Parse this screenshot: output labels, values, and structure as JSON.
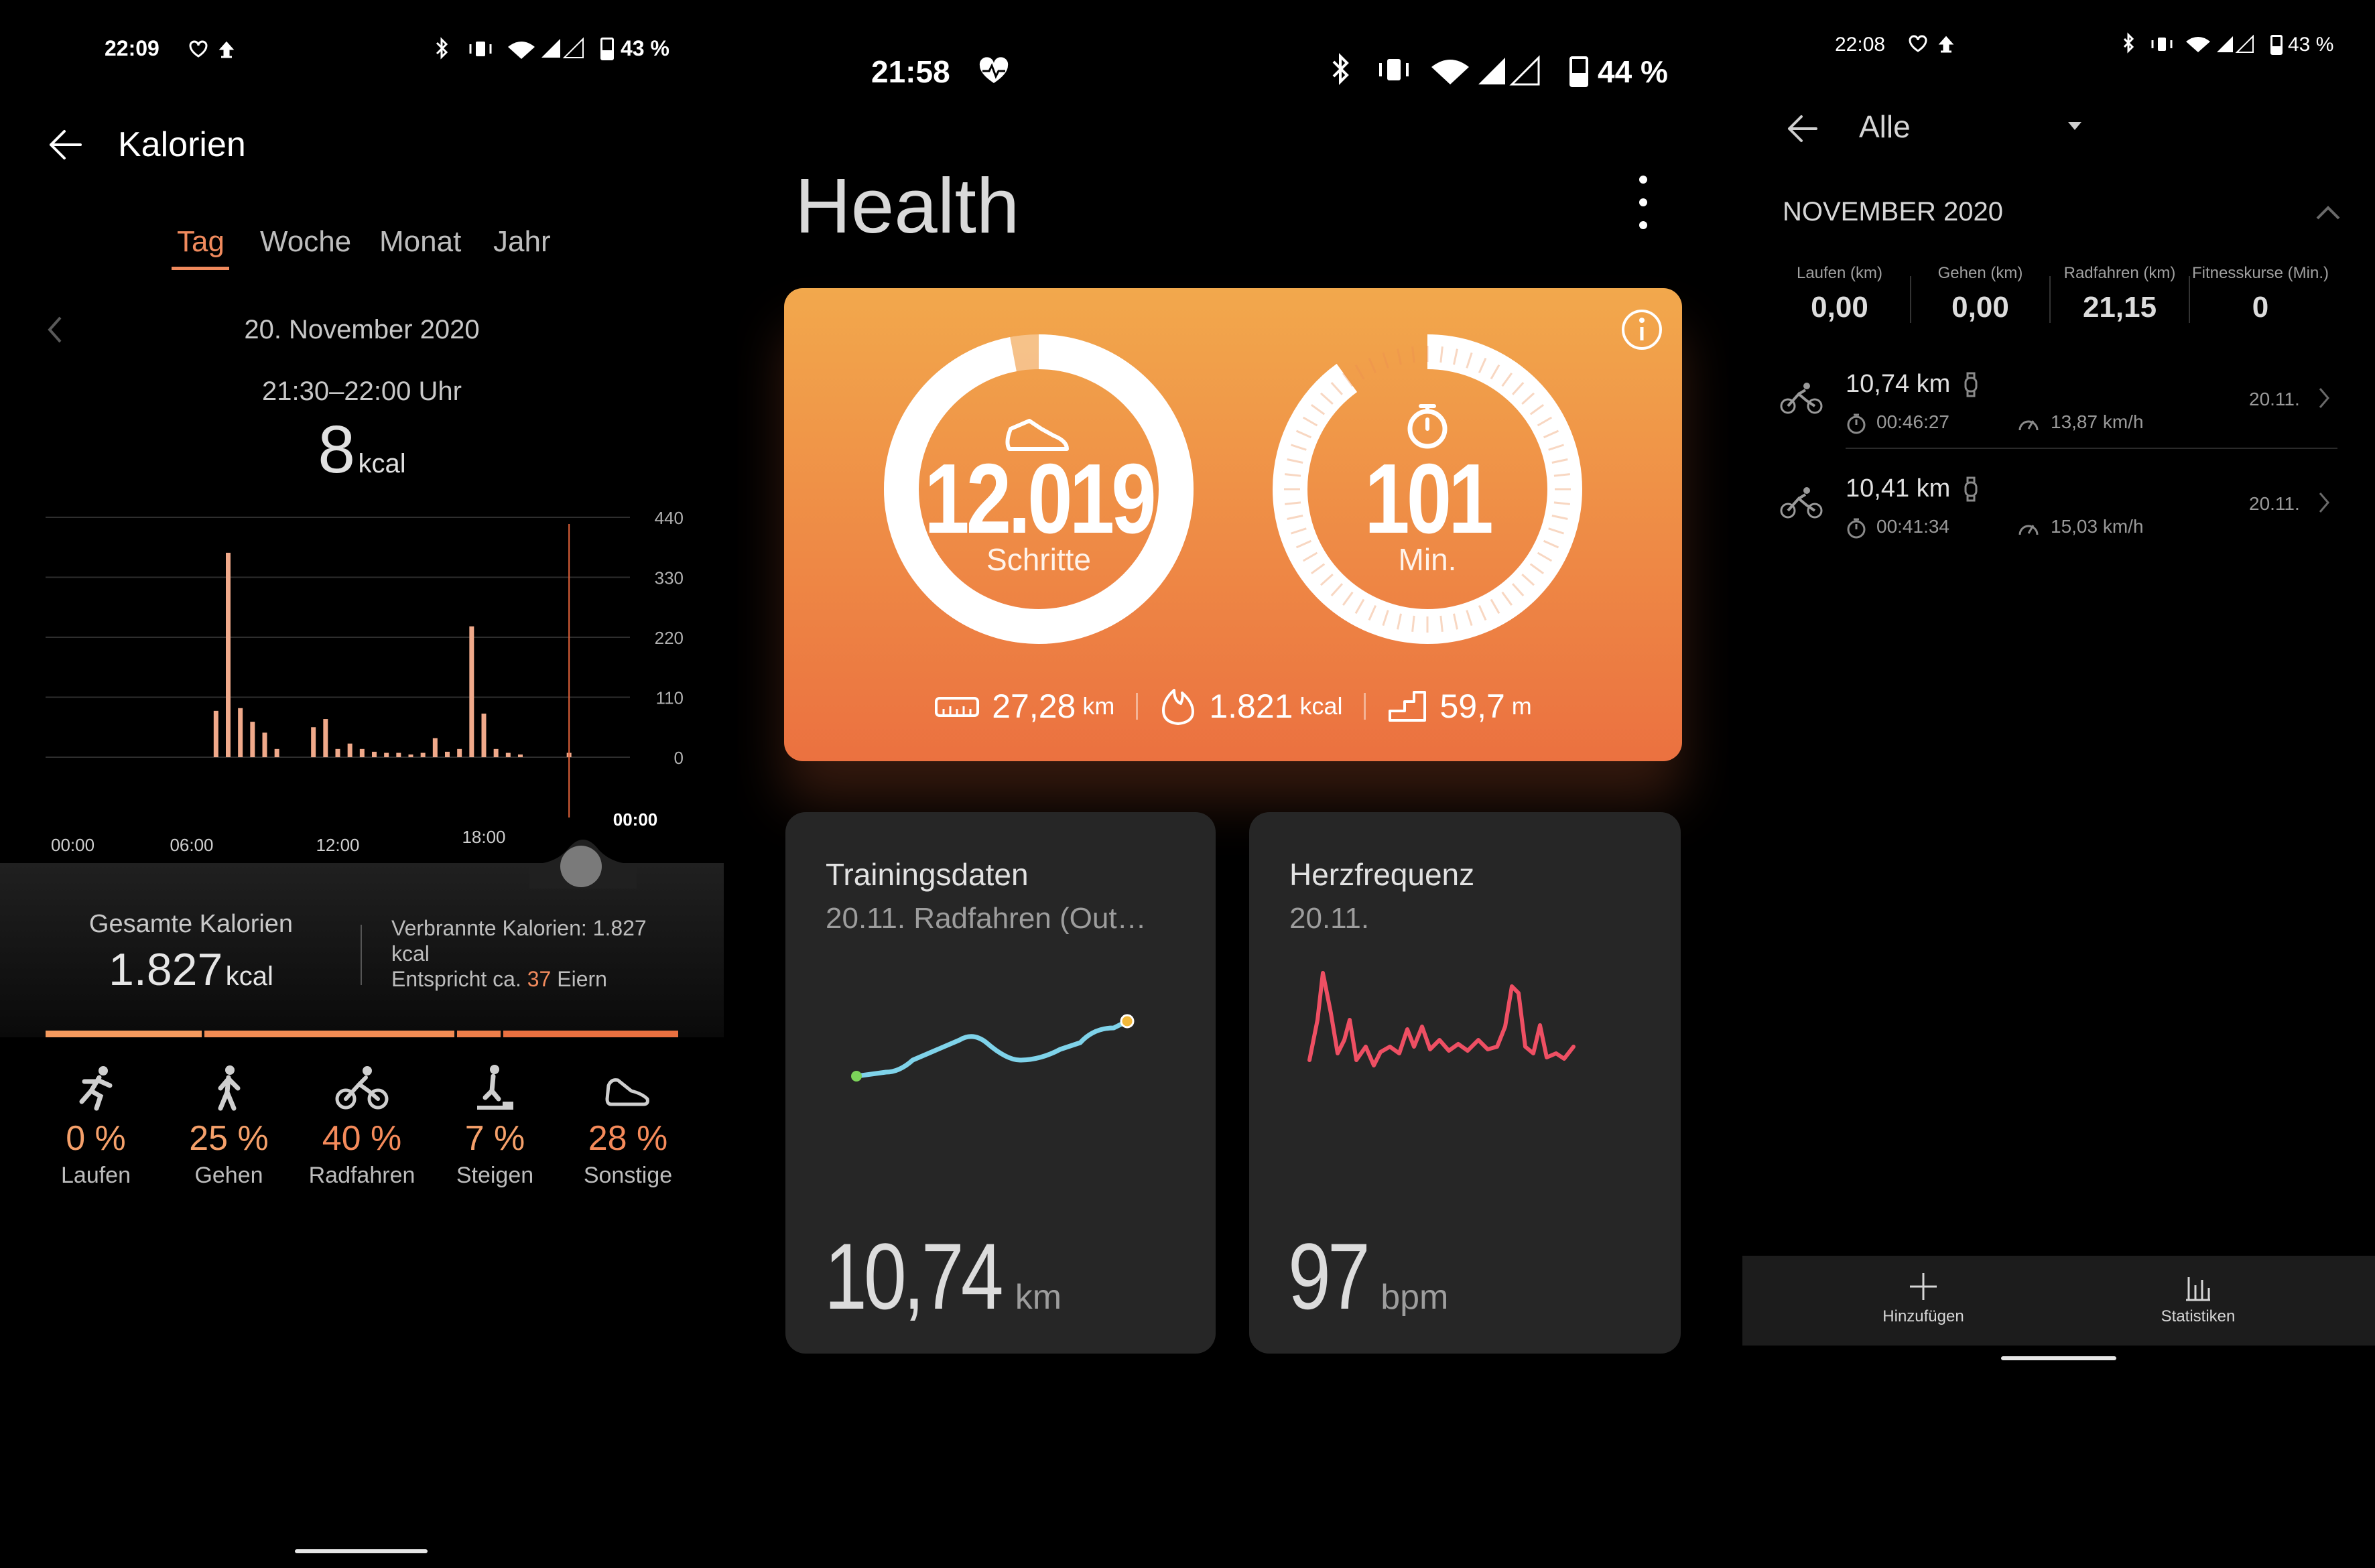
{
  "panel1": {
    "status": {
      "time": "22:09",
      "battery": "43 %"
    },
    "title": "Kalorien",
    "tabs": [
      "Tag",
      "Woche",
      "Monat",
      "Jahr"
    ],
    "date": "20. November 2020",
    "time_range": "21:30–22:00 Uhr",
    "value": "8",
    "value_unit": "kcal",
    "chart_data": {
      "type": "bar",
      "x_tick_labels": [
        "00:00",
        "06:00",
        "12:00",
        "18:00",
        "00:00"
      ],
      "y_tick_labels": [
        "440",
        "330",
        "220",
        "110",
        "0"
      ],
      "ylim": [
        0,
        440
      ],
      "grid": true,
      "x_unit": "hour",
      "values": [
        {
          "x": 7.0,
          "y": 85
        },
        {
          "x": 7.5,
          "y": 375
        },
        {
          "x": 8.0,
          "y": 90
        },
        {
          "x": 8.5,
          "y": 65
        },
        {
          "x": 9.0,
          "y": 45
        },
        {
          "x": 9.5,
          "y": 15
        },
        {
          "x": 11.0,
          "y": 55
        },
        {
          "x": 11.5,
          "y": 70
        },
        {
          "x": 12.0,
          "y": 15
        },
        {
          "x": 12.5,
          "y": 25
        },
        {
          "x": 13.0,
          "y": 15
        },
        {
          "x": 13.5,
          "y": 10
        },
        {
          "x": 14.0,
          "y": 8
        },
        {
          "x": 14.5,
          "y": 8
        },
        {
          "x": 15.0,
          "y": 5
        },
        {
          "x": 15.5,
          "y": 8
        },
        {
          "x": 16.0,
          "y": 35
        },
        {
          "x": 16.5,
          "y": 10
        },
        {
          "x": 17.0,
          "y": 15
        },
        {
          "x": 17.5,
          "y": 240
        },
        {
          "x": 18.0,
          "y": 80
        },
        {
          "x": 18.5,
          "y": 15
        },
        {
          "x": 19.0,
          "y": 8
        },
        {
          "x": 19.5,
          "y": 5
        },
        {
          "x": 21.5,
          "y": 8
        }
      ],
      "selected_x": 21.5
    },
    "total_label": "Gesamte Kalorien",
    "total_value": "1.827",
    "total_unit": "kcal",
    "burned_text": "Verbrannte Kalorien: 1.827 kcal",
    "equiv_prefix": "Entspricht ca.",
    "equiv_count": "37",
    "equiv_suffix": "Eiern",
    "segments": [
      0,
      25,
      40,
      7,
      28
    ],
    "activities": [
      {
        "pct": "0 %",
        "label": "Laufen"
      },
      {
        "pct": "25 %",
        "label": "Gehen"
      },
      {
        "pct": "40 %",
        "label": "Radfahren"
      },
      {
        "pct": "7 %",
        "label": "Steigen"
      },
      {
        "pct": "28 %",
        "label": "Sonstige"
      }
    ]
  },
  "panel2": {
    "status": {
      "time": "21:58",
      "battery": "44 %"
    },
    "title": "Health",
    "steps_value": "12.019",
    "steps_label": "Schritte",
    "steps_progress": 0.97,
    "minutes_value": "101",
    "minutes_label": "Min.",
    "minutes_progress": 0.9,
    "distance_value": "27,28",
    "distance_unit": "km",
    "kcal_value": "1.821",
    "kcal_unit": "kcal",
    "climb_value": "59,7",
    "climb_unit": "m",
    "training": {
      "title": "Trainingsdaten",
      "subtitle": "20.11. Radfahren (Out…",
      "value": "10,74",
      "unit": "km"
    },
    "heart": {
      "title": "Herzfrequenz",
      "subtitle": "20.11.",
      "value": "97",
      "unit": "bpm"
    },
    "colors": {
      "card_top": "#f2a84c",
      "card_bottom": "#eb7140",
      "route": "#7fd3ea",
      "heart": "#ee4f63"
    }
  },
  "panel3": {
    "status": {
      "time": "22:08",
      "battery": "43 %"
    },
    "filter": "Alle",
    "month": "NOVEMBER 2020",
    "stats": [
      {
        "label": "Laufen (km)",
        "value": "0,00"
      },
      {
        "label": "Gehen (km)",
        "value": "0,00"
      },
      {
        "label": "Radfahren (km)",
        "value": "21,15"
      },
      {
        "label": "Fitnesskurse (Min.)",
        "value": "0"
      }
    ],
    "records": [
      {
        "distance": "10,74 km",
        "duration": "00:46:27",
        "speed": "13,87 km/h",
        "date": "20.11."
      },
      {
        "distance": "10,41 km",
        "duration": "00:41:34",
        "speed": "15,03 km/h",
        "date": "20.11."
      }
    ],
    "bottom": {
      "add": "Hinzufügen",
      "stats": "Statistiken"
    }
  }
}
